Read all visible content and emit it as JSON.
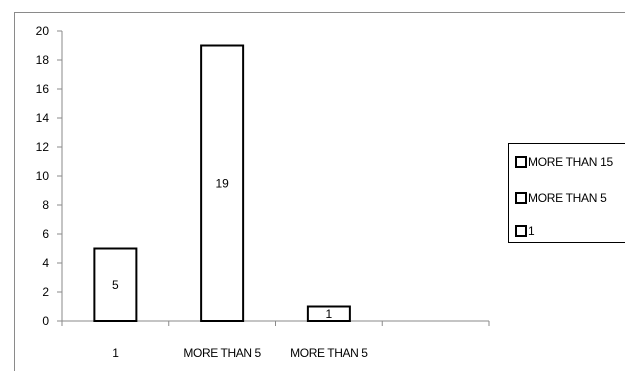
{
  "chart_data": {
    "type": "bar",
    "categories": [
      "1",
      "MORE THAN 5",
      "MORE THAN 5"
    ],
    "series": [
      {
        "values": [
          5,
          19,
          1
        ],
        "data_labels": [
          "5",
          "19",
          "1"
        ]
      }
    ],
    "ylim": [
      0,
      20
    ],
    "yticks": [
      0,
      2,
      4,
      6,
      8,
      10,
      12,
      14,
      16,
      18,
      20
    ],
    "extra_category_slots": 1,
    "bar_fill": "#ffffff",
    "bar_stroke": "#000000",
    "grid": false,
    "legend": {
      "position": "right",
      "entries": [
        "MORE THAN 15",
        "MORE THAN 5",
        "1"
      ]
    },
    "title": "",
    "xlabel": "",
    "ylabel": ""
  }
}
